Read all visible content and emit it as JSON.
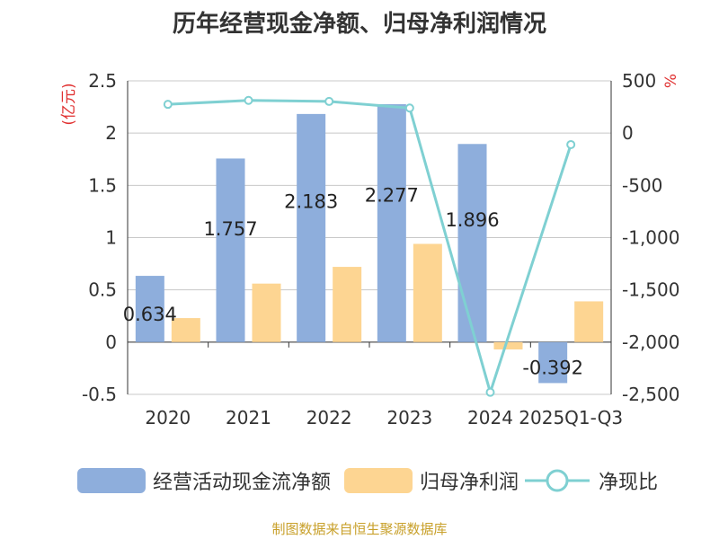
{
  "title": "历年经营现金净额、归母净利润情况",
  "source": "制图数据来自恒生聚源数据库",
  "legend": {
    "series1": "经营活动现金流净额",
    "series2": "归母净利润",
    "series3": "净现比"
  },
  "colors": {
    "series1": "#8eaedc",
    "series2": "#fdd592",
    "series3": "#7fd0d2",
    "axis_unit": "#e03030",
    "title": "#333333",
    "source": "#c8a02a"
  },
  "chart_data": {
    "type": "bar",
    "categories": [
      "2020",
      "2021",
      "2022",
      "2023",
      "2024",
      "2025Q1-Q3"
    ],
    "y_left": {
      "unit_label": "(亿元)",
      "ylim": [
        -0.5,
        2.5
      ],
      "ticks": [
        2.5,
        2,
        1.5,
        1,
        0.5,
        0,
        -0.5
      ],
      "tick_labels": [
        "2.5",
        "2",
        "1.5",
        "1",
        "0.5",
        "0",
        "-0.5"
      ]
    },
    "y_right": {
      "unit_label": "%",
      "ylim": [
        -2500,
        500
      ],
      "ticks": [
        500,
        0,
        -500,
        -1000,
        -1500,
        -2000,
        -2500
      ],
      "tick_labels": [
        "500",
        "0",
        "-500",
        "-1,000",
        "-1,500",
        "-2,000",
        "-2,500"
      ]
    },
    "grid": true,
    "legend_position": "bottom",
    "series": [
      {
        "name": "经营活动现金流净额",
        "type": "bar",
        "axis": "left",
        "values": [
          0.634,
          1.757,
          2.183,
          2.277,
          1.896,
          -0.392
        ],
        "labels": [
          "0.634",
          "1.757",
          "2.183",
          "2.277",
          "1.896",
          "-0.392"
        ]
      },
      {
        "name": "归母净利润",
        "type": "bar",
        "axis": "left",
        "values": [
          0.23,
          0.56,
          0.72,
          0.94,
          -0.07,
          0.39
        ]
      },
      {
        "name": "净现比",
        "type": "line",
        "axis": "right",
        "values": [
          275,
          313,
          303,
          240,
          -2480,
          -110
        ]
      }
    ]
  }
}
